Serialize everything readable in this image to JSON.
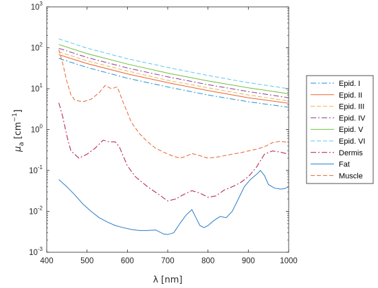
{
  "chart_data": {
    "type": "line",
    "xlabel": "λ [nm]",
    "ylabel_main": "μ",
    "ylabel_sub": "a",
    "ylabel_unit_pre": " [cm",
    "ylabel_unit_sup": "−1",
    "ylabel_unit_post": "]",
    "xlim": [
      400,
      1000
    ],
    "ylim_exp": [
      -3,
      3
    ],
    "yscale": "log",
    "grid": false,
    "legend_position": "outside-right",
    "x_ticks": [
      400,
      500,
      600,
      700,
      800,
      900,
      1000
    ],
    "x_tick_labels": [
      "400",
      "500",
      "600",
      "700",
      "800",
      "900",
      "1000"
    ],
    "y_ticks": [
      -3,
      -2,
      -1,
      0,
      1,
      2,
      3
    ],
    "y_tick_labels": [
      {
        "base": "10",
        "exp": "-3"
      },
      {
        "base": "10",
        "exp": "-2"
      },
      {
        "base": "10",
        "exp": "-1"
      },
      {
        "base": "10",
        "exp": "0"
      },
      {
        "base": "10",
        "exp": "1"
      },
      {
        "base": "10",
        "exp": "2"
      },
      {
        "base": "10",
        "exp": "3"
      }
    ],
    "series": [
      {
        "name": "Epid.  I",
        "color": "#1f8fd6",
        "dash": "8,3,2,3",
        "points": [
          [
            430,
            55
          ],
          [
            500,
            33
          ],
          [
            600,
            18
          ],
          [
            700,
            11
          ],
          [
            800,
            7
          ],
          [
            900,
            4.8
          ],
          [
            1000,
            3.5
          ]
        ]
      },
      {
        "name": "Epid.  II",
        "color": "#e8632f",
        "dash": "",
        "points": [
          [
            430,
            68
          ],
          [
            500,
            41
          ],
          [
            600,
            23
          ],
          [
            700,
            14
          ],
          [
            800,
            9
          ],
          [
            900,
            6
          ],
          [
            1000,
            4.4
          ]
        ]
      },
      {
        "name": "Epid. III",
        "color": "#f0b34a",
        "dash": "6,3",
        "points": [
          [
            430,
            80
          ],
          [
            500,
            48
          ],
          [
            600,
            27
          ],
          [
            700,
            16
          ],
          [
            800,
            10.5
          ],
          [
            900,
            7
          ],
          [
            1000,
            5.0
          ]
        ]
      },
      {
        "name": "Epid. IV",
        "color": "#8b3a9c",
        "dash": "8,3,2,3",
        "points": [
          [
            430,
            97
          ],
          [
            500,
            58
          ],
          [
            600,
            32
          ],
          [
            700,
            19.5
          ],
          [
            800,
            12.5
          ],
          [
            900,
            8.5
          ],
          [
            1000,
            6.0
          ]
        ]
      },
      {
        "name": "Epid.  V",
        "color": "#6cbf3a",
        "dash": "",
        "points": [
          [
            430,
            120
          ],
          [
            500,
            72
          ],
          [
            600,
            40
          ],
          [
            700,
            24
          ],
          [
            800,
            15.5
          ],
          [
            900,
            10.5
          ],
          [
            1000,
            7.5
          ]
        ]
      },
      {
        "name": "Epid. VI",
        "color": "#5bc8ef",
        "dash": "6,3",
        "points": [
          [
            430,
            165
          ],
          [
            500,
            98
          ],
          [
            600,
            54
          ],
          [
            700,
            33
          ],
          [
            800,
            21
          ],
          [
            900,
            14
          ],
          [
            1000,
            10
          ]
        ]
      },
      {
        "name": "Dermis",
        "color": "#b01842",
        "dash": "8,3,2,3",
        "points": [
          [
            430,
            4.5
          ],
          [
            440,
            2.0
          ],
          [
            450,
            0.7
          ],
          [
            460,
            0.3
          ],
          [
            480,
            0.2
          ],
          [
            500,
            0.25
          ],
          [
            520,
            0.35
          ],
          [
            540,
            0.55
          ],
          [
            555,
            0.5
          ],
          [
            570,
            0.5
          ],
          [
            580,
            0.38
          ],
          [
            600,
            0.13
          ],
          [
            620,
            0.07
          ],
          [
            650,
            0.04
          ],
          [
            680,
            0.025
          ],
          [
            700,
            0.018
          ],
          [
            720,
            0.02
          ],
          [
            740,
            0.026
          ],
          [
            760,
            0.032
          ],
          [
            780,
            0.028
          ],
          [
            800,
            0.022
          ],
          [
            820,
            0.024
          ],
          [
            840,
            0.033
          ],
          [
            860,
            0.04
          ],
          [
            880,
            0.05
          ],
          [
            900,
            0.07
          ],
          [
            920,
            0.12
          ],
          [
            940,
            0.25
          ],
          [
            960,
            0.3
          ],
          [
            980,
            0.28
          ],
          [
            1000,
            0.25
          ]
        ]
      },
      {
        "name": "Fat",
        "color": "#2a7bc4",
        "dash": "",
        "points": [
          [
            430,
            0.06
          ],
          [
            450,
            0.04
          ],
          [
            470,
            0.025
          ],
          [
            490,
            0.015
          ],
          [
            510,
            0.01
          ],
          [
            530,
            0.007
          ],
          [
            550,
            0.0055
          ],
          [
            570,
            0.0045
          ],
          [
            590,
            0.004
          ],
          [
            610,
            0.0036
          ],
          [
            630,
            0.0034
          ],
          [
            650,
            0.0034
          ],
          [
            670,
            0.0035
          ],
          [
            690,
            0.0028
          ],
          [
            700,
            0.0027
          ],
          [
            715,
            0.003
          ],
          [
            730,
            0.005
          ],
          [
            745,
            0.008
          ],
          [
            760,
            0.011
          ],
          [
            770,
            0.007
          ],
          [
            780,
            0.0045
          ],
          [
            790,
            0.004
          ],
          [
            800,
            0.0045
          ],
          [
            815,
            0.006
          ],
          [
            830,
            0.0075
          ],
          [
            845,
            0.007
          ],
          [
            860,
            0.01
          ],
          [
            875,
            0.02
          ],
          [
            890,
            0.04
          ],
          [
            905,
            0.06
          ],
          [
            920,
            0.08
          ],
          [
            930,
            0.1
          ],
          [
            940,
            0.075
          ],
          [
            950,
            0.045
          ],
          [
            965,
            0.037
          ],
          [
            980,
            0.035
          ],
          [
            990,
            0.036
          ],
          [
            1000,
            0.04
          ]
        ]
      },
      {
        "name": "Muscle",
        "color": "#e8632f",
        "dash": "6,3",
        "points": [
          [
            430,
            90
          ],
          [
            440,
            40
          ],
          [
            450,
            15
          ],
          [
            460,
            7
          ],
          [
            470,
            5.2
          ],
          [
            490,
            4.8
          ],
          [
            510,
            5.5
          ],
          [
            530,
            8
          ],
          [
            545,
            12
          ],
          [
            560,
            10
          ],
          [
            575,
            11
          ],
          [
            590,
            4.5
          ],
          [
            610,
            1.5
          ],
          [
            630,
            0.8
          ],
          [
            650,
            0.5
          ],
          [
            670,
            0.35
          ],
          [
            690,
            0.28
          ],
          [
            710,
            0.23
          ],
          [
            730,
            0.2
          ],
          [
            745,
            0.22
          ],
          [
            760,
            0.26
          ],
          [
            780,
            0.23
          ],
          [
            800,
            0.2
          ],
          [
            820,
            0.21
          ],
          [
            850,
            0.24
          ],
          [
            880,
            0.27
          ],
          [
            900,
            0.3
          ],
          [
            920,
            0.33
          ],
          [
            940,
            0.38
          ],
          [
            960,
            0.48
          ],
          [
            980,
            0.52
          ],
          [
            1000,
            0.48
          ]
        ]
      }
    ]
  }
}
